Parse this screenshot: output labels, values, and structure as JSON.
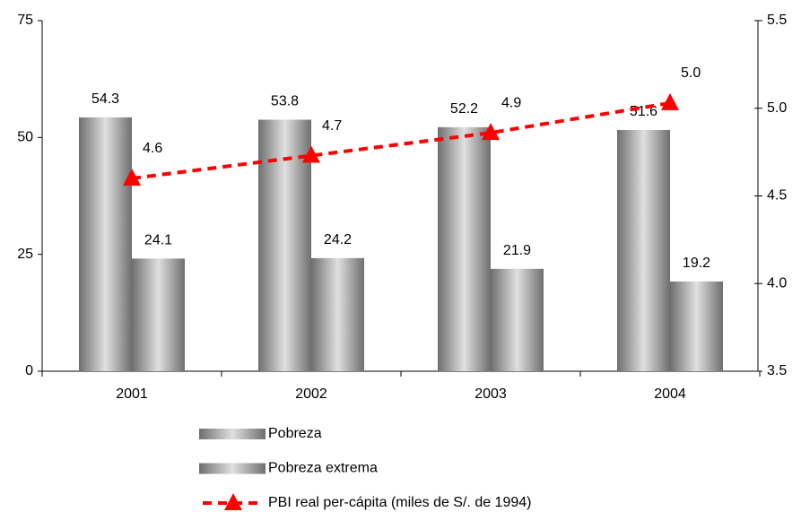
{
  "chart_data": {
    "type": "bar",
    "categories": [
      "2001",
      "2002",
      "2003",
      "2004"
    ],
    "series": [
      {
        "name": "Pobreza",
        "type": "bar",
        "color": "#6e6e6e",
        "values": [
          54.3,
          53.8,
          52.2,
          51.6
        ]
      },
      {
        "name": "Pobreza extrema",
        "type": "bar",
        "color": "#6e6e6e",
        "values": [
          24.1,
          24.2,
          21.9,
          19.2
        ]
      },
      {
        "name": "PBI real per-cápita (miles de S/. de 1994)",
        "type": "line",
        "axis": "y2",
        "color": "#ff0000",
        "values": [
          4.6,
          4.73,
          4.86,
          5.03
        ],
        "value_labels": [
          "4.6",
          "4.7",
          "4.9",
          "5.0"
        ]
      }
    ],
    "ylim": [
      0,
      75
    ],
    "yticks": [
      0,
      25,
      50,
      75
    ],
    "y2lim": [
      3.5,
      5.5
    ],
    "y2ticks": [
      3.5,
      {
        "value": 4.0,
        "label": "4.0"
      },
      4.5,
      {
        "value": 5.0,
        "label": "5.0"
      },
      5.5
    ],
    "legend": "bottom"
  }
}
